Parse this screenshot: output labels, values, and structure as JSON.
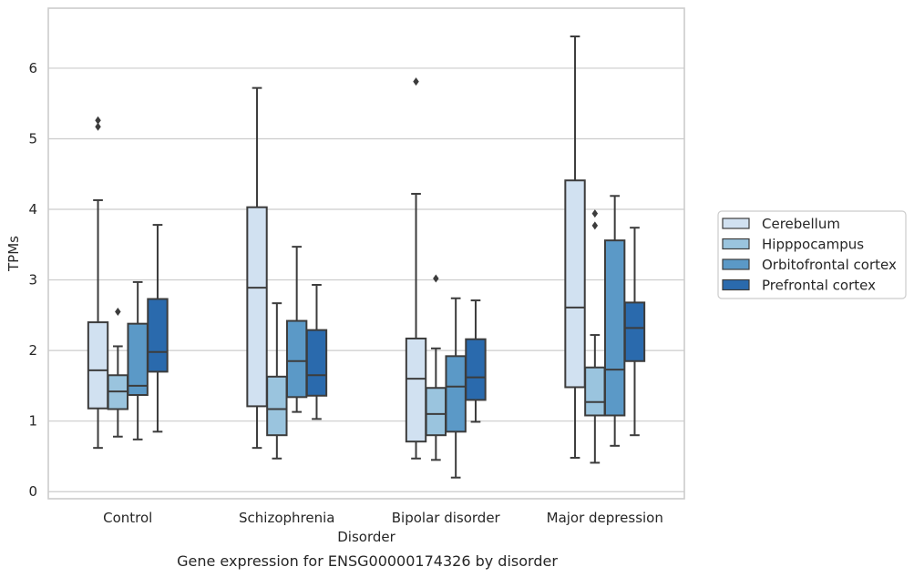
{
  "chart_data": {
    "type": "box",
    "xlabel": "Disorder",
    "ylabel": "TPMs",
    "caption": "Gene expression for ENSG00000174326 by disorder",
    "ylim": [
      -0.1,
      6.85
    ],
    "yticks": [
      0,
      1,
      2,
      3,
      4,
      5,
      6
    ],
    "grid": true,
    "legend_position": "right",
    "categories": [
      "Control",
      "Schizophrenia",
      "Bipolar disorder",
      "Major depression"
    ],
    "series": [
      {
        "name": "Cerebellum",
        "color": "#d1e1f1",
        "boxes": [
          {
            "whislo": 0.62,
            "q1": 1.18,
            "med": 1.72,
            "q3": 2.4,
            "whishi": 4.13,
            "fliers": [
              5.17,
              5.26
            ]
          },
          {
            "whislo": 0.62,
            "q1": 1.21,
            "med": 2.89,
            "q3": 4.03,
            "whishi": 5.72,
            "fliers": []
          },
          {
            "whislo": 0.47,
            "q1": 0.71,
            "med": 1.6,
            "q3": 2.17,
            "whishi": 4.22,
            "fliers": [
              5.81
            ]
          },
          {
            "whislo": 0.48,
            "q1": 1.48,
            "med": 2.61,
            "q3": 4.41,
            "whishi": 6.45,
            "fliers": []
          }
        ]
      },
      {
        "name": "Hipppocampus",
        "color": "#9ac4de",
        "boxes": [
          {
            "whislo": 0.78,
            "q1": 1.17,
            "med": 1.42,
            "q3": 1.65,
            "whishi": 2.06,
            "fliers": [
              2.55
            ]
          },
          {
            "whislo": 0.47,
            "q1": 0.8,
            "med": 1.17,
            "q3": 1.63,
            "whishi": 2.67,
            "fliers": []
          },
          {
            "whislo": 0.45,
            "q1": 0.8,
            "med": 1.1,
            "q3": 1.47,
            "whishi": 2.03,
            "fliers": [
              3.02
            ]
          },
          {
            "whislo": 0.41,
            "q1": 1.08,
            "med": 1.27,
            "q3": 1.76,
            "whishi": 2.22,
            "fliers": [
              3.77,
              3.94
            ]
          }
        ]
      },
      {
        "name": "Orbitofrontal cortex",
        "color": "#5b99c7",
        "boxes": [
          {
            "whislo": 0.74,
            "q1": 1.37,
            "med": 1.5,
            "q3": 2.38,
            "whishi": 2.97,
            "fliers": []
          },
          {
            "whislo": 1.13,
            "q1": 1.34,
            "med": 1.85,
            "q3": 2.42,
            "whishi": 3.47,
            "fliers": []
          },
          {
            "whislo": 0.2,
            "q1": 0.85,
            "med": 1.49,
            "q3": 1.92,
            "whishi": 2.74,
            "fliers": []
          },
          {
            "whislo": 0.65,
            "q1": 1.08,
            "med": 1.73,
            "q3": 3.56,
            "whishi": 4.19,
            "fliers": []
          }
        ]
      },
      {
        "name": "Prefrontal cortex",
        "color": "#2a6aad",
        "boxes": [
          {
            "whislo": 0.85,
            "q1": 1.7,
            "med": 1.98,
            "q3": 2.73,
            "whishi": 3.78,
            "fliers": []
          },
          {
            "whislo": 1.03,
            "q1": 1.36,
            "med": 1.65,
            "q3": 2.29,
            "whishi": 2.93,
            "fliers": []
          },
          {
            "whislo": 0.99,
            "q1": 1.3,
            "med": 1.62,
            "q3": 2.16,
            "whishi": 2.71,
            "fliers": []
          },
          {
            "whislo": 0.8,
            "q1": 1.85,
            "med": 2.32,
            "q3": 2.68,
            "whishi": 3.74,
            "fliers": []
          }
        ]
      }
    ]
  }
}
